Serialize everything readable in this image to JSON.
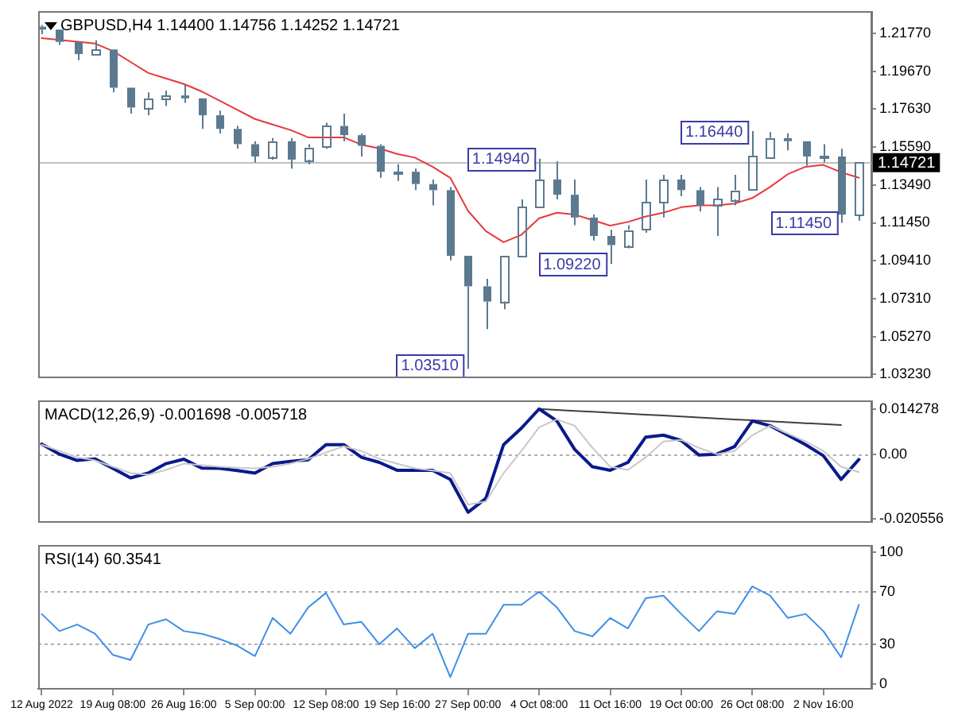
{
  "chart_data": [
    {
      "type": "candlestick",
      "title": "GBPUSD,H4 1.14400 1.14756 1.14252 1.14721",
      "color": "#5b7a90",
      "tick_labels": "y",
      "categories": [
        null,
        null,
        null,
        null,
        null,
        null,
        null,
        null,
        null,
        null,
        null,
        null,
        null,
        null,
        null,
        null,
        null,
        null,
        null,
        null,
        null,
        null,
        null,
        null,
        null,
        null,
        null,
        null,
        null,
        null,
        null,
        null,
        null,
        null,
        null,
        null,
        null,
        null,
        null,
        null,
        null,
        null,
        null,
        null,
        null,
        null,
        null
      ],
      "ohlc": [
        [
          1.2212,
          1.2221,
          1.2171,
          1.2196
        ],
        [
          1.2196,
          1.2196,
          1.2113,
          1.2129
        ],
        [
          1.2129,
          1.2129,
          1.203,
          1.2063
        ],
        [
          1.2063,
          1.2138,
          1.2055,
          1.2088
        ],
        [
          1.2088,
          1.2088,
          1.1855,
          1.188
        ],
        [
          1.188,
          1.188,
          1.1739,
          1.1772
        ],
        [
          1.1772,
          1.1855,
          1.173,
          1.1822
        ],
        [
          1.1822,
          1.1863,
          1.178,
          1.1838
        ],
        [
          1.1838,
          1.1897,
          1.1797,
          1.1822
        ],
        [
          1.1822,
          1.1822,
          1.1656,
          1.173
        ],
        [
          1.173,
          1.1755,
          1.1631,
          1.1656
        ],
        [
          1.1656,
          1.1672,
          1.1548,
          1.1573
        ],
        [
          1.1573,
          1.1589,
          1.1473,
          1.1506
        ],
        [
          1.1506,
          1.1606,
          1.1489,
          1.1589
        ],
        [
          1.1589,
          1.1606,
          1.144,
          1.1489
        ],
        [
          1.1489,
          1.1573,
          1.1464,
          1.1556
        ],
        [
          1.1556,
          1.1689,
          1.1548,
          1.1672
        ],
        [
          1.1672,
          1.1739,
          1.1589,
          1.1622
        ],
        [
          1.1622,
          1.1631,
          1.1506,
          1.1564
        ],
        [
          1.1564,
          1.1573,
          1.139,
          1.1423
        ],
        [
          1.1423,
          1.1464,
          1.1373,
          1.1423
        ],
        [
          1.1423,
          1.144,
          1.1323,
          1.1356
        ],
        [
          1.1356,
          1.1381,
          1.124,
          1.1323
        ],
        [
          1.1323,
          1.134,
          1.0941,
          1.0966
        ],
        [
          1.0966,
          1.0966,
          1.0351,
          1.08
        ],
        [
          1.08,
          1.0841,
          1.0567,
          1.0717
        ],
        [
          1.0717,
          1.0966,
          1.0675,
          1.0966
        ],
        [
          1.0966,
          1.1273,
          1.0966,
          1.1232
        ],
        [
          1.1232,
          1.1494,
          1.1232,
          1.1381
        ],
        [
          1.1381,
          1.148,
          1.1273,
          1.1298
        ],
        [
          1.1298,
          1.1381,
          1.1132,
          1.1174
        ],
        [
          1.1174,
          1.119,
          1.1049,
          1.1074
        ],
        [
          1.1074,
          1.1107,
          1.0922,
          1.1024
        ],
        [
          1.1024,
          1.1132,
          1.1007,
          1.1107
        ],
        [
          1.1107,
          1.1381,
          1.1091,
          1.1257
        ],
        [
          1.1257,
          1.1406,
          1.1174,
          1.1381
        ],
        [
          1.1381,
          1.1406,
          1.129,
          1.1323
        ],
        [
          1.1323,
          1.134,
          1.1207,
          1.124
        ],
        [
          1.124,
          1.134,
          1.1074,
          1.1273
        ],
        [
          1.1273,
          1.1406,
          1.124,
          1.1323
        ],
        [
          1.1323,
          1.1644,
          1.1323,
          1.1506
        ],
        [
          1.1506,
          1.1639,
          1.1506,
          1.1606
        ],
        [
          1.1606,
          1.1631,
          1.1539,
          1.1589
        ],
        [
          1.1589,
          1.1589,
          1.1456,
          1.1506
        ],
        [
          1.1506,
          1.1573,
          1.1473,
          1.1506
        ],
        [
          1.1506,
          1.1548,
          1.1145,
          1.119
        ],
        [
          1.119,
          1.1473,
          1.1157,
          1.14721
        ]
      ],
      "series": [
        {
          "type": "line",
          "color": "#e8383d",
          "values": [
            1.215,
            1.214,
            1.213,
            1.212,
            1.208,
            1.202,
            1.196,
            1.193,
            1.19,
            1.186,
            1.181,
            1.176,
            1.171,
            1.168,
            1.165,
            1.161,
            1.161,
            1.161,
            1.157,
            1.155,
            1.152,
            1.15,
            1.145,
            1.139,
            1.121,
            1.11,
            1.104,
            1.108,
            1.117,
            1.12,
            1.119,
            1.116,
            1.113,
            1.115,
            1.118,
            1.12,
            1.123,
            1.124,
            1.124,
            1.125,
            1.128,
            1.134,
            1.141,
            1.145,
            1.146,
            1.142,
            1.139
          ]
        }
      ],
      "ylim": [
        1.0304,
        1.2293
      ],
      "yticks": [
        {
          "value": 1.2177,
          "label": "1.21770"
        },
        {
          "value": 1.1967,
          "label": "1.19670"
        },
        {
          "value": 1.1763,
          "label": "1.17630"
        },
        {
          "value": 1.1559,
          "label": "1.15590"
        },
        {
          "value": 1.1349,
          "label": "1.13490"
        },
        {
          "value": 1.1145,
          "label": "1.11450"
        },
        {
          "value": 1.0941,
          "label": "1.09410"
        },
        {
          "value": 1.0731,
          "label": "1.07310"
        },
        {
          "value": 1.0527,
          "label": "1.05270"
        },
        {
          "value": 1.0323,
          "label": "1.03230"
        }
      ],
      "ref_lines": [
        {
          "axis": "y",
          "value": 1.14721,
          "label": "1.14721",
          "color": "#c0c0c0"
        }
      ],
      "annotations": [
        {
          "text": "1.03510",
          "y": 1.0351
        },
        {
          "text": "1.14940",
          "y": 1.1494
        },
        {
          "text": "1.09220",
          "y": 1.0922
        },
        {
          "text": "1.16440",
          "y": 1.1644
        },
        {
          "text": "1.11450",
          "y": 1.1145
        }
      ]
    },
    {
      "type": "line",
      "title": "MACD(12,26,9) -0.001698 -0.005718",
      "tick_labels": "y",
      "categories": [
        null,
        null,
        null,
        null,
        null,
        null,
        null,
        null,
        null,
        null,
        null,
        null,
        null,
        null,
        null,
        null,
        null,
        null,
        null,
        null,
        null,
        null,
        null,
        null,
        null,
        null,
        null,
        null,
        null,
        null,
        null,
        null,
        null,
        null,
        null,
        null,
        null,
        null,
        null,
        null,
        null,
        null,
        null,
        null,
        null,
        null,
        null
      ],
      "series": [
        {
          "color": "#c8c8c8",
          "values": [
            0.003,
            0.001,
            -0.001,
            -0.002,
            -0.004,
            -0.006,
            -0.0065,
            -0.005,
            -0.003,
            -0.0035,
            -0.004,
            -0.0043,
            -0.0045,
            -0.004,
            -0.003,
            -0.0015,
            0.0005,
            0.0025,
            0.001,
            -0.0015,
            -0.003,
            -0.0045,
            -0.0052,
            -0.006,
            -0.016,
            -0.015,
            -0.006,
            0.001,
            0.0085,
            0.011,
            0.009,
            0.002,
            -0.004,
            -0.005,
            -0.001,
            0.004,
            0.0045,
            0.002,
            0.0,
            0.001,
            0.006,
            0.009,
            0.0065,
            0.004,
            0.001,
            -0.004,
            -0.0057
          ]
        },
        {
          "color": "#0a1a8c",
          "values": [
            0.0032,
            0.0,
            -0.002,
            -0.0015,
            -0.0045,
            -0.0075,
            -0.006,
            -0.003,
            -0.0016,
            -0.0044,
            -0.0045,
            -0.0052,
            -0.006,
            -0.003,
            -0.0023,
            -0.0018,
            0.003,
            0.003,
            -0.001,
            -0.0026,
            -0.0051,
            -0.0051,
            -0.0051,
            -0.008,
            -0.0184,
            -0.014,
            0.003,
            0.0082,
            0.0143,
            0.0105,
            0.0015,
            -0.004,
            -0.0051,
            -0.0026,
            0.0054,
            0.006,
            0.0043,
            -0.0003,
            0.0,
            0.0024,
            0.0105,
            0.009,
            0.006,
            0.003,
            -0.0005,
            -0.008,
            -0.0017
          ]
        },
        {
          "color": "#404040",
          "values": [
            null,
            null,
            null,
            null,
            null,
            null,
            null,
            null,
            null,
            null,
            null,
            null,
            null,
            null,
            null,
            null,
            null,
            null,
            null,
            null,
            null,
            null,
            null,
            null,
            null,
            null,
            null,
            null,
            0.0143,
            0.014,
            0.0137,
            0.0134,
            0.0131,
            0.0128,
            0.0125,
            0.0122,
            0.0119,
            0.0116,
            0.0113,
            0.011,
            0.0107,
            0.0104,
            0.0101,
            0.0098,
            0.0095,
            0.0092,
            null
          ]
        }
      ],
      "ylim": [
        -0.0215,
        0.0168
      ],
      "yticks": [
        0.014278,
        {
          "value": 0,
          "label": "0.00"
        },
        -0.020556
      ],
      "ref_lines": [
        {
          "axis": "y",
          "value": 0,
          "color": "#b0b0b0",
          "line_style": "dotted"
        }
      ]
    },
    {
      "type": "line",
      "title": "RSI(14) 60.3541",
      "categories": [
        "12 Aug 2022",
        null,
        null,
        null,
        "19 Aug 08:00",
        null,
        null,
        null,
        "26 Aug 16:00",
        null,
        null,
        null,
        "5 Sep 00:00",
        null,
        null,
        null,
        "12 Sep 08:00",
        null,
        null,
        null,
        "19 Sep 16:00",
        null,
        null,
        null,
        "27 Sep 00:00",
        null,
        null,
        null,
        "4 Oct 08:00",
        null,
        null,
        null,
        "11 Oct 16:00",
        null,
        null,
        null,
        "19 Oct 00:00",
        null,
        null,
        null,
        "26 Oct 08:00",
        null,
        null,
        null,
        "2 Nov 16:00",
        null,
        null
      ],
      "series": [
        {
          "color": "#3d8fe8",
          "values": [
            53,
            40,
            45,
            38,
            22,
            18,
            45,
            49,
            40,
            38,
            34,
            29,
            21,
            50,
            38,
            58,
            69,
            45,
            47,
            30,
            42,
            27,
            38,
            5,
            38,
            38,
            60,
            60,
            70,
            58,
            40,
            36,
            50,
            42,
            65,
            67,
            53,
            40,
            55,
            53,
            74,
            67,
            50,
            53,
            40,
            20,
            60
          ]
        }
      ],
      "ylim": [
        -4,
        105
      ],
      "yticks": [
        100,
        70,
        30,
        0
      ],
      "ref_lines": [
        {
          "axis": "y",
          "value": 70,
          "color": "#b0b0b0",
          "line_style": "dotted"
        },
        {
          "axis": "y",
          "value": 30,
          "color": "#b0b0b0",
          "line_style": "dotted"
        }
      ]
    }
  ]
}
